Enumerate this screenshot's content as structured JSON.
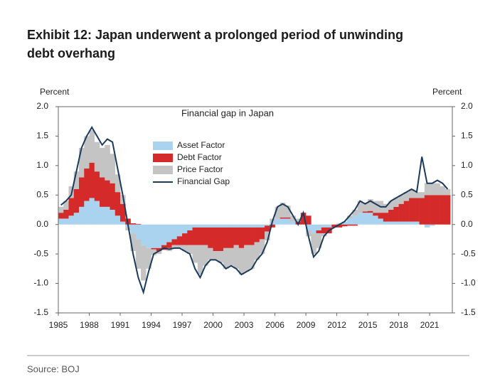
{
  "chart_data": {
    "type": "stacked-bar-line",
    "title": "Exhibit 12: Japan underwent a prolonged period of unwinding debt overhang",
    "subtitle": "Financial gap in Japan",
    "ylabel": "Percent",
    "y2label": "Percent",
    "source": "Source: BOJ",
    "x": [
      1985,
      1985.5,
      1986,
      1986.5,
      1987,
      1987.5,
      1988,
      1988.5,
      1989,
      1989.5,
      1990,
      1990.5,
      1991,
      1991.5,
      1992,
      1992.5,
      1993,
      1993.5,
      1994,
      1994.5,
      1995,
      1995.5,
      1996,
      1996.5,
      1997,
      1997.5,
      1998,
      1998.5,
      1999,
      1999.5,
      2000,
      2000.5,
      2001,
      2001.5,
      2002,
      2002.5,
      2003,
      2003.5,
      2004,
      2004.5,
      2005,
      2005.5,
      2006,
      2006.5,
      2007,
      2007.5,
      2008,
      2008.5,
      2009,
      2009.5,
      2010,
      2010.5,
      2011,
      2011.5,
      2012,
      2012.5,
      2013,
      2013.5,
      2014,
      2014.5,
      2015,
      2015.5,
      2016,
      2016.5,
      2017,
      2017.5,
      2018,
      2018.5,
      2019,
      2019.5,
      2020,
      2020.5,
      2021,
      2021.5,
      2022,
      2022.5
    ],
    "series": [
      {
        "name": "Asset Factor",
        "kind": "bar",
        "color": "#a9d3ee",
        "values": [
          0.1,
          0.1,
          0.15,
          0.2,
          0.3,
          0.4,
          0.45,
          0.4,
          0.3,
          0.3,
          0.25,
          0.15,
          0.05,
          -0.05,
          -0.15,
          -0.25,
          -0.35,
          -0.4,
          -0.4,
          -0.4,
          -0.35,
          -0.3,
          -0.25,
          -0.2,
          -0.15,
          -0.1,
          -0.05,
          -0.05,
          -0.05,
          -0.05,
          -0.05,
          -0.05,
          -0.05,
          -0.05,
          -0.05,
          -0.05,
          -0.05,
          -0.05,
          -0.05,
          -0.05,
          -0.02,
          0.05,
          0.1,
          0.1,
          0.1,
          0.05,
          0,
          0,
          -0.1,
          -0.15,
          -0.1,
          -0.05,
          -0.05,
          0,
          0,
          0.05,
          0.1,
          0.15,
          0.2,
          0.2,
          0.2,
          0.15,
          0.1,
          0.05,
          0.05,
          0.05,
          0.05,
          0.05,
          0.05,
          0.05,
          0,
          -0.05,
          -0.02,
          0,
          0,
          0
        ]
      },
      {
        "name": "Debt Factor",
        "kind": "bar",
        "color": "#d42a2a",
        "values": [
          0.1,
          0.15,
          0.3,
          0.4,
          0.5,
          0.55,
          0.6,
          0.5,
          0.5,
          0.45,
          0.45,
          0.4,
          0.3,
          0.1,
          0.02,
          0.01,
          0,
          0,
          -0.02,
          -0.05,
          -0.08,
          -0.1,
          -0.1,
          -0.15,
          -0.2,
          -0.25,
          -0.3,
          -0.3,
          -0.3,
          -0.35,
          -0.4,
          -0.4,
          -0.35,
          -0.35,
          -0.3,
          -0.35,
          -0.3,
          -0.3,
          -0.25,
          -0.2,
          -0.1,
          -0.05,
          0,
          0.02,
          0.02,
          0,
          0.05,
          0.2,
          0.15,
          0,
          -0.05,
          -0.1,
          -0.1,
          -0.05,
          -0.05,
          -0.03,
          -0.02,
          -0.02,
          0,
          0.02,
          0.03,
          0.05,
          0.1,
          0.15,
          0.2,
          0.25,
          0.3,
          0.35,
          0.4,
          0.4,
          0.45,
          0.5,
          0.5,
          0.5,
          0.5,
          0.5
        ]
      },
      {
        "name": "Price Factor",
        "kind": "bar",
        "color": "#c4c4c4",
        "values": [
          0.1,
          0.15,
          0.2,
          0.3,
          0.5,
          0.55,
          0.55,
          0.5,
          0.5,
          0.6,
          0.5,
          0.3,
          0.15,
          -0.05,
          -0.3,
          -0.5,
          -0.6,
          -0.35,
          -0.1,
          -0.05,
          0,
          -0.05,
          -0.05,
          -0.05,
          -0.1,
          -0.15,
          -0.3,
          -0.5,
          -0.35,
          -0.2,
          -0.15,
          -0.2,
          -0.35,
          -0.3,
          -0.4,
          -0.45,
          -0.45,
          -0.4,
          -0.3,
          -0.25,
          -0.15,
          0.05,
          0.2,
          0.25,
          0.2,
          0.1,
          0.05,
          0,
          -0.1,
          -0.35,
          -0.25,
          -0.05,
          0,
          0,
          0.02,
          0,
          0.05,
          0.1,
          0.2,
          0.15,
          0.2,
          0.2,
          0.2,
          0.15,
          0.15,
          0.15,
          0.15,
          0.15,
          0.15,
          0.1,
          0.1,
          0.2,
          0.2,
          0.2,
          0.15,
          0.1
        ]
      },
      {
        "name": "Financial Gap",
        "kind": "line",
        "color": "#1b3a5c",
        "values": [
          0.33,
          0.4,
          0.5,
          0.9,
          1.3,
          1.5,
          1.65,
          1.5,
          1.35,
          1.45,
          1.4,
          0.95,
          0.5,
          0,
          -0.5,
          -0.9,
          -1.15,
          -0.8,
          -0.5,
          -0.45,
          -0.4,
          -0.42,
          -0.4,
          -0.4,
          -0.45,
          -0.5,
          -0.75,
          -0.9,
          -0.7,
          -0.6,
          -0.6,
          -0.65,
          -0.75,
          -0.7,
          -0.75,
          -0.85,
          -0.8,
          -0.75,
          -0.6,
          -0.5,
          -0.3,
          0.05,
          0.3,
          0.35,
          0.3,
          0.15,
          0,
          0.2,
          -0.2,
          -0.55,
          -0.45,
          -0.2,
          -0.1,
          -0.05,
          0,
          0.05,
          0.15,
          0.25,
          0.4,
          0.35,
          0.4,
          0.35,
          0.3,
          0.3,
          0.4,
          0.45,
          0.5,
          0.55,
          0.6,
          0.55,
          1.15,
          0.7,
          0.7,
          0.75,
          0.7,
          0.6
        ]
      }
    ],
    "xlim": [
      1985,
      2023.2
    ],
    "xticks": [
      1985,
      1988,
      1991,
      1994,
      1997,
      2000,
      2003,
      2006,
      2009,
      2012,
      2015,
      2018,
      2021
    ],
    "ylim": [
      -1.5,
      2
    ],
    "yticks": [
      {
        "value": 2,
        "label": "2.0"
      },
      -1.5,
      {
        "value": -1,
        "label": "-1.0"
      },
      -0.5,
      {
        "value": 0,
        "label": "0.0"
      },
      0.5,
      {
        "value": 1,
        "label": "1.0"
      },
      1.5
    ],
    "y2lim": [
      -1.5,
      2
    ],
    "y2ticks": [
      {
        "value": 2,
        "label": "2.0"
      },
      -1.5,
      {
        "value": -1,
        "label": "-1.0"
      },
      -0.5,
      {
        "value": 0,
        "label": "0.0"
      },
      0.5,
      {
        "value": 1,
        "label": "1.0"
      },
      1.5
    ]
  }
}
